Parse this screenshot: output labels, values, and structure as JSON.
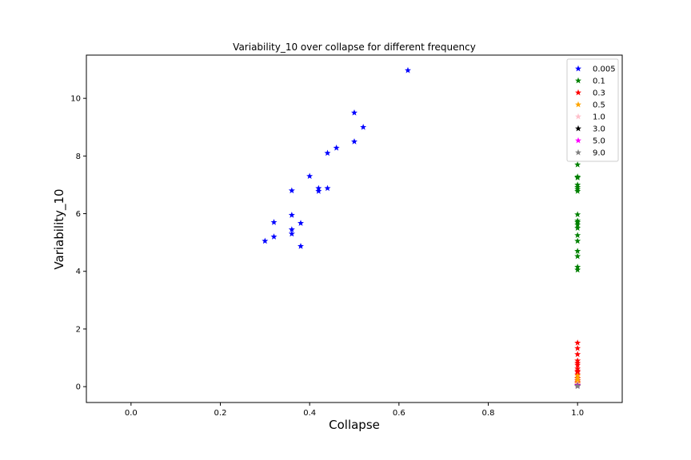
{
  "chart_data": {
    "type": "scatter",
    "title": "Variability_10 over collapse for different frequency",
    "xlabel": "Collapse",
    "ylabel": "Variability_10",
    "xlim": [
      -0.1,
      1.1
    ],
    "ylim": [
      -0.55,
      11.5
    ],
    "xticks": [
      "0.0",
      "0.2",
      "0.4",
      "0.6",
      "0.8",
      "1.0"
    ],
    "yticks": [
      "0",
      "2",
      "4",
      "6",
      "8",
      "10"
    ],
    "grid": false,
    "legend_position": "top-right",
    "marker": "star",
    "series": [
      {
        "name": "0.005",
        "color": "#0000ff",
        "points": [
          [
            0.3,
            5.05
          ],
          [
            0.32,
            5.2
          ],
          [
            0.32,
            5.7
          ],
          [
            0.36,
            5.3
          ],
          [
            0.36,
            5.45
          ],
          [
            0.36,
            5.95
          ],
          [
            0.36,
            6.8
          ],
          [
            0.38,
            4.87
          ],
          [
            0.38,
            5.67
          ],
          [
            0.4,
            7.3
          ],
          [
            0.42,
            6.78
          ],
          [
            0.42,
            6.88
          ],
          [
            0.44,
            6.88
          ],
          [
            0.44,
            8.1
          ],
          [
            0.46,
            8.28
          ],
          [
            0.5,
            8.5
          ],
          [
            0.5,
            9.5
          ],
          [
            0.52,
            9.0
          ],
          [
            0.62,
            10.97
          ]
        ]
      },
      {
        "name": "0.1",
        "color": "#008000",
        "points": [
          [
            1.0,
            7.7
          ],
          [
            1.0,
            7.28
          ],
          [
            1.0,
            7.25
          ],
          [
            1.0,
            7.0
          ],
          [
            1.0,
            6.92
          ],
          [
            1.0,
            6.85
          ],
          [
            1.0,
            6.78
          ],
          [
            1.0,
            5.97
          ],
          [
            1.0,
            5.75
          ],
          [
            1.0,
            5.7
          ],
          [
            1.0,
            5.62
          ],
          [
            1.0,
            5.5
          ],
          [
            1.0,
            5.25
          ],
          [
            1.0,
            5.05
          ],
          [
            1.0,
            4.7
          ],
          [
            1.0,
            4.52
          ],
          [
            1.0,
            4.15
          ],
          [
            1.0,
            4.05
          ]
        ]
      },
      {
        "name": "0.3",
        "color": "#ff0000",
        "points": [
          [
            1.0,
            1.52
          ],
          [
            1.0,
            1.33
          ],
          [
            1.0,
            1.12
          ],
          [
            1.0,
            0.9
          ],
          [
            1.0,
            0.82
          ],
          [
            1.0,
            0.75
          ],
          [
            1.0,
            0.62
          ],
          [
            1.0,
            0.55
          ],
          [
            1.0,
            0.5
          ],
          [
            1.0,
            0.42
          ],
          [
            1.0,
            0.3
          ],
          [
            1.0,
            0.22
          ],
          [
            1.0,
            0.15
          ],
          [
            1.0,
            0.1
          ]
        ]
      },
      {
        "name": "0.5",
        "color": "#ffa500",
        "points": [
          [
            1.0,
            0.38
          ],
          [
            1.0,
            0.28
          ],
          [
            1.0,
            0.2
          ],
          [
            1.0,
            0.12
          ]
        ]
      },
      {
        "name": "1.0",
        "color": "#ffc0cb",
        "points": [
          [
            1.0,
            0.09
          ],
          [
            1.0,
            0.07
          ]
        ]
      },
      {
        "name": "3.0",
        "color": "#000000",
        "points": [
          [
            1.0,
            0.05
          ]
        ]
      },
      {
        "name": "5.0",
        "color": "#ff00ff",
        "points": [
          [
            1.0,
            0.04
          ]
        ]
      },
      {
        "name": "9.0",
        "color": "#808080",
        "points": [
          [
            1.0,
            0.02
          ],
          [
            1.0,
            0.01
          ]
        ]
      }
    ]
  }
}
